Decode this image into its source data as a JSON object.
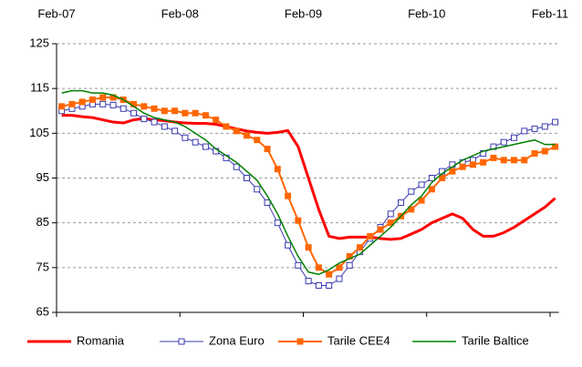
{
  "chart_data": {
    "type": "line",
    "categories": [
      "Feb-07",
      null,
      null,
      null,
      null,
      null,
      null,
      null,
      null,
      null,
      null,
      null,
      "Feb-08",
      null,
      null,
      null,
      null,
      null,
      null,
      null,
      null,
      null,
      null,
      null,
      "Feb-09",
      null,
      null,
      null,
      null,
      null,
      null,
      null,
      null,
      null,
      null,
      null,
      "Feb-10",
      null,
      null,
      null,
      null,
      null,
      null,
      null,
      null,
      null,
      null,
      null,
      "Feb-11"
    ],
    "ylim": [
      65,
      125
    ],
    "yticks": [
      65,
      75,
      85,
      95,
      105,
      115,
      125
    ],
    "grid": true,
    "legend": "bottom",
    "series": [
      {
        "name": "Romania",
        "color": "#ff0000",
        "marker": null,
        "values": [
          109,
          109,
          108.7,
          108.5,
          108,
          107.5,
          107.3,
          108,
          108.3,
          108,
          107.8,
          107.5,
          107.3,
          107.2,
          107.2,
          107,
          106.5,
          106,
          105.5,
          105.2,
          105,
          105.2,
          105.6,
          102,
          95,
          88,
          82,
          81.5,
          81.8,
          81.8,
          81.8,
          81.5,
          81.3,
          81.5,
          82.5,
          83.5,
          85,
          86,
          87,
          86,
          83.5,
          82,
          82,
          82.8,
          84,
          85.5,
          87,
          88.5,
          90.5
        ]
      },
      {
        "name": "Zona Euro",
        "color": "#3a3ab0",
        "marker": "square-open",
        "values": [
          110,
          110.5,
          111,
          111.5,
          111.5,
          111.3,
          110.5,
          109.5,
          108.2,
          107.5,
          106.5,
          105.5,
          104,
          103,
          102,
          101,
          99.5,
          97.5,
          95,
          92.5,
          89.5,
          85,
          80,
          75.5,
          72,
          71,
          71,
          72.5,
          75.5,
          78.5,
          81.5,
          84,
          87,
          89.5,
          92,
          93.5,
          95,
          96.5,
          98,
          98.5,
          99,
          100.5,
          102,
          103,
          104,
          105.5,
          106,
          106.5,
          107.5
        ]
      },
      {
        "name": "Tarile CEE4",
        "color": "#ff6600",
        "marker": "square",
        "values": [
          111,
          111.5,
          112,
          112.5,
          113,
          113,
          112.5,
          111.5,
          111,
          110.5,
          110,
          110,
          109.5,
          109.5,
          109,
          108,
          106.5,
          105.5,
          104.5,
          103.5,
          101.5,
          97,
          91,
          85.5,
          79.5,
          75,
          73.5,
          75,
          77.5,
          79.5,
          82,
          83.5,
          85,
          86.5,
          88,
          90,
          92.5,
          95,
          96.5,
          97.5,
          98,
          98.5,
          99.5,
          99,
          99,
          99,
          100.5,
          101,
          102
        ]
      },
      {
        "name": "Tarile Baltice",
        "color": "#008000",
        "marker": null,
        "values": [
          114,
          114.5,
          114.5,
          114,
          114,
          113.5,
          112.5,
          111,
          109.5,
          108.5,
          108,
          107.5,
          106.5,
          105,
          103.5,
          101.5,
          100,
          98.5,
          96.5,
          94.5,
          91,
          87,
          82,
          77.5,
          74,
          73.5,
          74.5,
          76,
          77,
          78,
          80,
          82,
          84,
          86.5,
          89,
          91,
          94,
          96,
          97.5,
          99,
          100,
          101,
          101.5,
          102,
          102.5,
          103,
          103.5,
          102.5,
          102.5
        ]
      }
    ]
  }
}
